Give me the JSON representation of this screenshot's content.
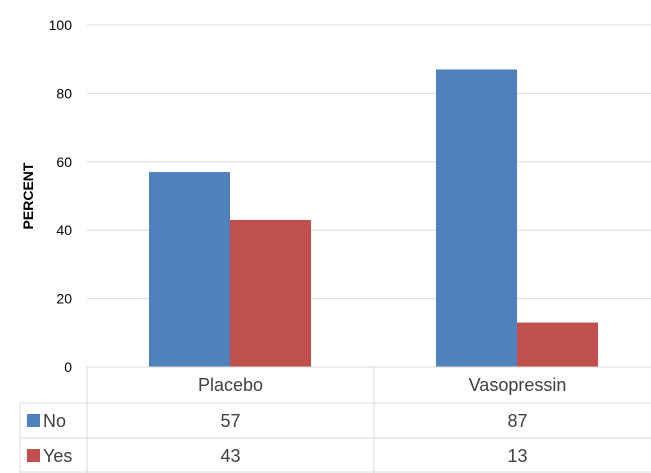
{
  "chart_data": {
    "type": "bar",
    "categories": [
      "Placebo",
      "Vasopressin"
    ],
    "series": [
      {
        "name": "No",
        "values": [
          57,
          87
        ],
        "color": "#4F81BD"
      },
      {
        "name": "Yes",
        "values": [
          43,
          13
        ],
        "color": "#C0504D"
      }
    ],
    "ylabel": "PERCENT",
    "xlabel": "",
    "ylim": [
      0,
      100
    ],
    "yticks": [
      0,
      20,
      40,
      60,
      80,
      100
    ],
    "grid": true,
    "legend": "data table below chart",
    "data_table": true,
    "colors": {
      "gridline": "#D9D9D9",
      "table_border": "#D9D9D9"
    }
  }
}
